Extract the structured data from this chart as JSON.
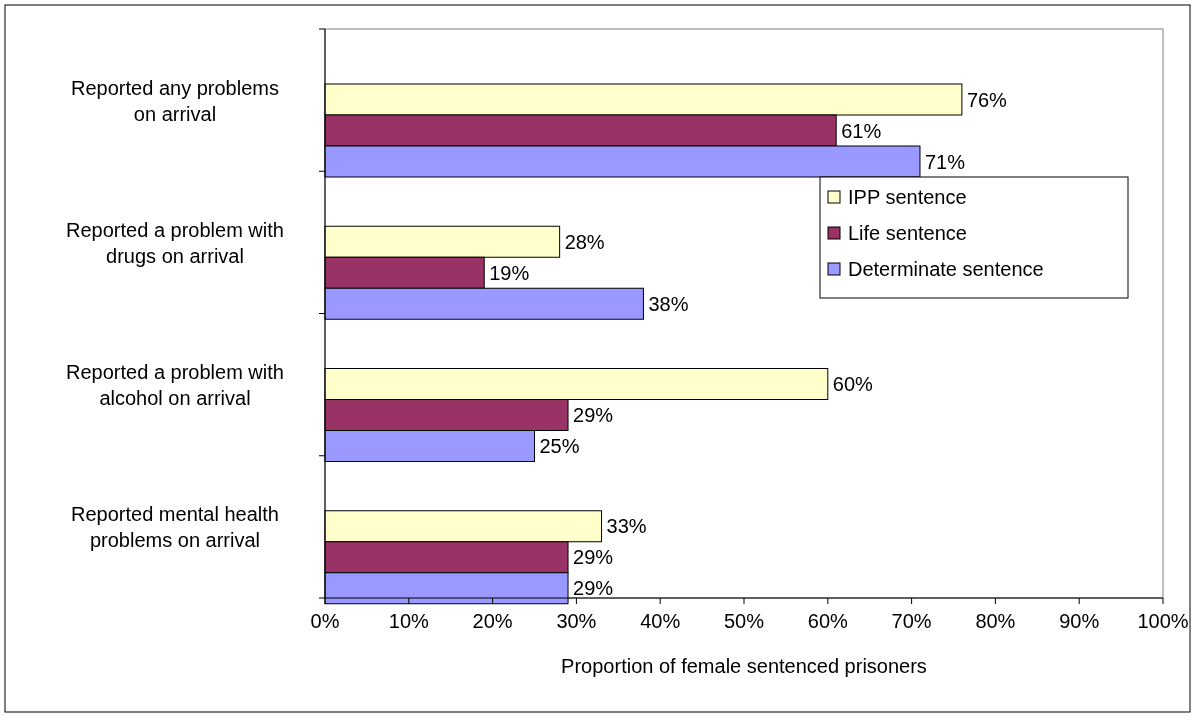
{
  "chart_data": {
    "type": "bar",
    "orientation": "horizontal",
    "xlabel": "Proportion of female sentenced prisoners",
    "categories": [
      "Reported any problems on arrival",
      "Reported a problem with drugs on arrival",
      "Reported a problem with alcohol on arrival",
      "Reported mental health problems on arrival"
    ],
    "series": [
      {
        "name": "IPP sentence",
        "color": "#ffffcc",
        "values": [
          76,
          28,
          60,
          33
        ],
        "value_labels": [
          "76%",
          "28%",
          "60%",
          "33%"
        ]
      },
      {
        "name": "Life sentence",
        "color": "#993366",
        "values": [
          61,
          19,
          29,
          29
        ],
        "value_labels": [
          "61%",
          "19%",
          "29%",
          "29%"
        ]
      },
      {
        "name": "Determinate sentence",
        "color": "#9999ff",
        "values": [
          71,
          38,
          25,
          29
        ],
        "value_labels": [
          "71%",
          "38%",
          "25%",
          "29%"
        ]
      }
    ],
    "xlim": [
      0,
      100
    ],
    "xticks": [
      {
        "value": 0,
        "label": "0%"
      },
      {
        "value": 10,
        "label": "10%"
      },
      {
        "value": 20,
        "label": "20%"
      },
      {
        "value": 30,
        "label": "30%"
      },
      {
        "value": 40,
        "label": "40%"
      },
      {
        "value": 50,
        "label": "50%"
      },
      {
        "value": 60,
        "label": "60%"
      },
      {
        "value": 70,
        "label": "70%"
      },
      {
        "value": 80,
        "label": "80%"
      },
      {
        "value": 90,
        "label": "90%"
      },
      {
        "value": 100,
        "label": "100%"
      }
    ],
    "legend": "right",
    "grid": false
  }
}
